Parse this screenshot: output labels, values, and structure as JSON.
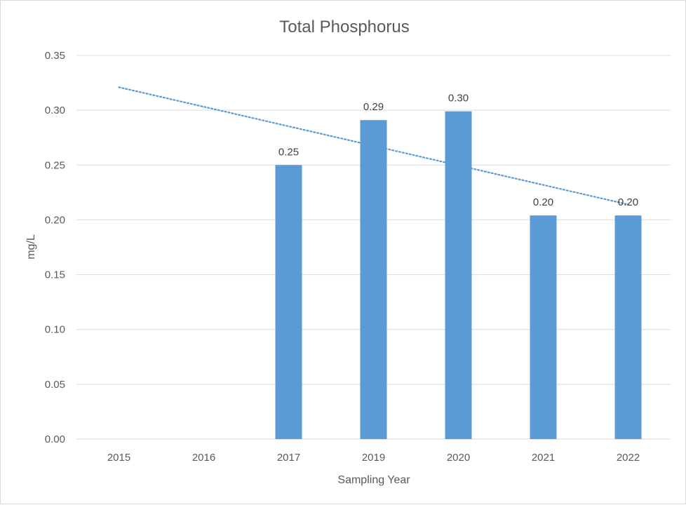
{
  "chart_data": {
    "type": "bar",
    "title": "Total Phosphorus",
    "xlabel": "Sampling Year",
    "ylabel": "mg/L",
    "categories": [
      "2015",
      "2016",
      "2017",
      "2019",
      "2020",
      "2021",
      "2022"
    ],
    "values": [
      null,
      null,
      0.25,
      0.29,
      0.3,
      0.2,
      0.2
    ],
    "bar_values": [
      null,
      null,
      0.25,
      0.291,
      0.299,
      0.204,
      0.204
    ],
    "ylim": [
      0,
      0.35
    ],
    "yticks": [
      "0.00",
      "0.05",
      "0.10",
      "0.15",
      "0.20",
      "0.25",
      "0.30",
      "0.35"
    ],
    "grid": true,
    "bar_color": "#5b9bd5",
    "trendline": {
      "type": "linear",
      "style": "dotted",
      "color": "#5b9bd5",
      "start": 0.321,
      "end": 0.214
    }
  }
}
